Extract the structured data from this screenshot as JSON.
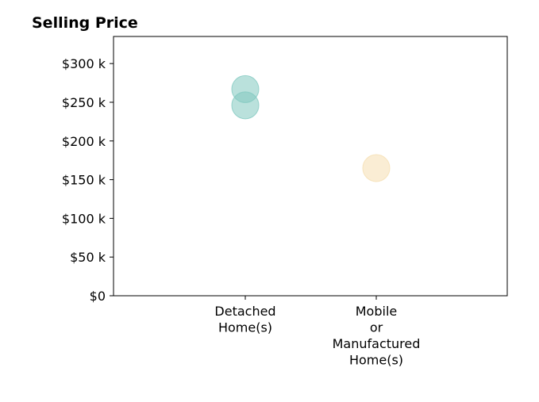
{
  "chart_data": {
    "type": "scatter",
    "title": "Selling Price",
    "xlabel": "",
    "ylabel": "",
    "categories": [
      [
        "Detached",
        "Home(s)"
      ],
      [
        "Mobile",
        "or",
        "Manufactured",
        "Home(s)"
      ]
    ],
    "ylim": [
      0,
      335000
    ],
    "yticks": [
      0,
      50000,
      100000,
      150000,
      200000,
      250000,
      300000
    ],
    "ytick_labels": [
      "$0",
      "$50 k",
      "$100 k",
      "$150 k",
      "$200 k",
      "$250 k",
      "$300 k"
    ],
    "grid": false,
    "legend": "none",
    "points": [
      {
        "category": 0,
        "y": 267000,
        "color": "#82c9c0"
      },
      {
        "category": 0,
        "y": 246000,
        "color": "#82c9c0"
      },
      {
        "category": 1,
        "y": 165000,
        "color": "#f5deb0"
      }
    ],
    "colors": {
      "detached": "#82c9c0",
      "mobile": "#f5deb0",
      "axis": "#000000"
    }
  }
}
